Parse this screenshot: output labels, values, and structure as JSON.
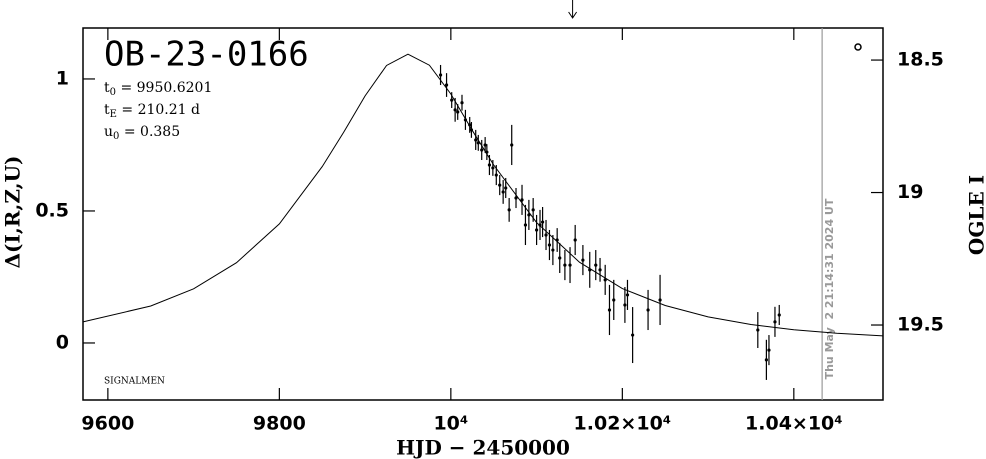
{
  "chart_data": {
    "type": "scatter",
    "title": "OB-23-0166",
    "parameters": [
      {
        "symbol": "t",
        "sub": "0",
        "text": " = 9950.6201"
      },
      {
        "symbol": "t",
        "sub": "E",
        "text": " = 210.21 d"
      },
      {
        "symbol": "u",
        "sub": "0",
        "text": " = 0.385"
      }
    ],
    "credit": "SIGNALMEN",
    "timestamp": "Thu May  2 21:14:31 2024 UT",
    "x_label": "HJD − 2450000",
    "y_label": "Δ(I,R,Z,U)",
    "y2_label": "OGLE I",
    "xlim": [
      9571,
      10504
    ],
    "xticks": [
      9600,
      9800,
      {
        "value": 10000,
        "label": "10⁴"
      },
      {
        "value": 10200,
        "label": "1.02×10⁴"
      },
      {
        "value": 10400,
        "label": "1.04×10⁴"
      }
    ],
    "ylim": [
      -0.216,
      1.193
    ],
    "yticks": [
      0,
      0.5,
      1
    ],
    "y2lim": [
      19.783,
      18.379
    ],
    "y2ticks": [
      18.5,
      19,
      19.5
    ],
    "vline_x": 10433,
    "arrow_x": 10142,
    "color": "#000000",
    "x": [
      9988,
      9995,
      10001,
      10005,
      10008,
      10013,
      10017,
      10022,
      10024,
      10029,
      10032,
      10036,
      10040,
      10042,
      10045,
      10049,
      10053,
      10057,
      10061,
      10064,
      10068,
      10071,
      10076,
      10083,
      10087,
      10091,
      10096,
      10100,
      10104,
      10107,
      10111,
      10115,
      10119,
      10124,
      10127,
      10133,
      10139,
      10145,
      10154,
      10162,
      10169,
      10174,
      10180,
      10185,
      10190,
      10203,
      10206,
      10212,
      10230,
      10244,
      10358,
      10368,
      10371,
      10378,
      10383
    ],
    "values": [
      1.015,
      0.977,
      0.92,
      0.883,
      0.875,
      0.91,
      0.845,
      0.826,
      0.807,
      0.769,
      0.758,
      0.731,
      0.75,
      0.723,
      0.674,
      0.663,
      0.636,
      0.598,
      0.572,
      0.587,
      0.504,
      0.75,
      0.549,
      0.542,
      0.447,
      0.485,
      0.504,
      0.428,
      0.447,
      0.458,
      0.409,
      0.371,
      0.352,
      0.39,
      0.322,
      0.295,
      0.295,
      0.39,
      0.314,
      0.277,
      0.295,
      0.277,
      0.239,
      0.125,
      0.163,
      0.144,
      0.182,
      0.03,
      0.125,
      0.163,
      0.049,
      -0.064,
      -0.027,
      0.08,
      0.106
    ],
    "errors": [
      0.038,
      0.045,
      0.03,
      0.045,
      0.03,
      0.03,
      0.038,
      0.03,
      0.03,
      0.038,
      0.03,
      0.038,
      0.03,
      0.03,
      0.038,
      0.03,
      0.038,
      0.038,
      0.045,
      0.038,
      0.045,
      0.076,
      0.038,
      0.057,
      0.076,
      0.057,
      0.045,
      0.057,
      0.057,
      0.057,
      0.057,
      0.057,
      0.057,
      0.045,
      0.057,
      0.057,
      0.068,
      0.057,
      0.057,
      0.068,
      0.057,
      0.045,
      0.057,
      0.095,
      0.076,
      0.068,
      0.057,
      0.106,
      0.076,
      0.095,
      0.068,
      0.076,
      0.057,
      0.057,
      0.038
    ],
    "model": {
      "x": [
        9571,
        9650,
        9700,
        9750,
        9800,
        9850,
        9875,
        9900,
        9925,
        9950,
        9975,
        10000,
        10025,
        10050,
        10100,
        10150,
        10200,
        10250,
        10300,
        10350,
        10400,
        10450,
        10504
      ],
      "values": [
        0.08,
        0.14,
        0.205,
        0.304,
        0.451,
        0.668,
        0.798,
        0.936,
        1.051,
        1.094,
        1.052,
        0.943,
        0.805,
        0.674,
        0.456,
        0.306,
        0.206,
        0.142,
        0.099,
        0.07,
        0.05,
        0.037,
        0.027
      ]
    }
  }
}
